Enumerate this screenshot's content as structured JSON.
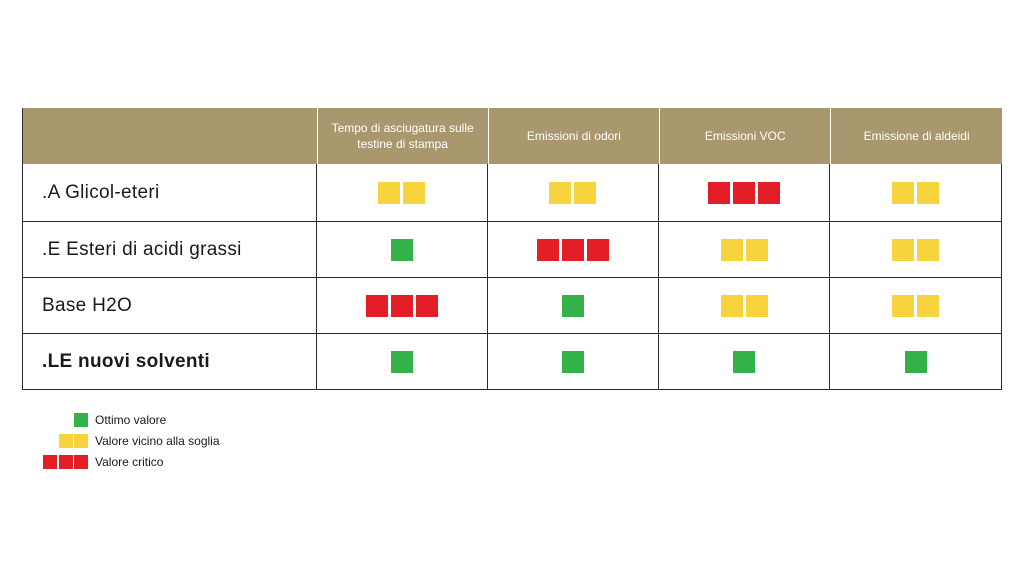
{
  "table": {
    "headers": [
      "",
      "Tempo di asciugatura sulle testine di stampa",
      "Emissioni di odori",
      "Emissioni VOC",
      "Emissione di aldeidi"
    ],
    "rows": [
      {
        "label": ".A Glicol-eteri",
        "bold": false,
        "ratings": [
          "yellow2",
          "yellow2",
          "red3",
          "yellow2"
        ]
      },
      {
        "label": ".E Esteri di acidi grassi",
        "bold": false,
        "ratings": [
          "green1",
          "red3",
          "yellow2",
          "yellow2"
        ]
      },
      {
        "label": "Base H2O",
        "bold": false,
        "ratings": [
          "red3",
          "green1",
          "yellow2",
          "yellow2"
        ]
      },
      {
        "label": ".LE nuovi solventi",
        "bold": true,
        "ratings": [
          "green1",
          "green1",
          "green1",
          "green1"
        ]
      }
    ]
  },
  "legend": [
    {
      "rating": "green1",
      "text": "Ottimo valore"
    },
    {
      "rating": "yellow2",
      "text": "Valore vicino alla soglia"
    },
    {
      "rating": "red3",
      "text": "Valore critico"
    }
  ],
  "colors": {
    "header_bg": "#a9976d",
    "green": "#33b24a",
    "yellow": "#f7d33d",
    "red": "#e41e26"
  }
}
